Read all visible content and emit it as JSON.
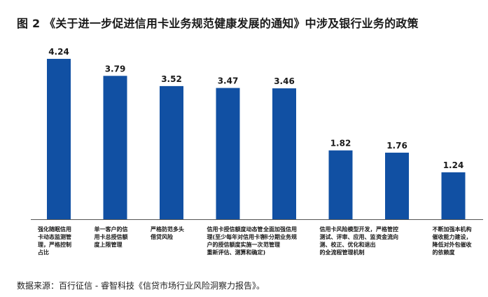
{
  "title": "图 2 《关于进一步促进信用卡业务规范健康发展的通知》中涉及银行业务的政策",
  "source": "数据来源：百行征信 - 睿智科技《信贷市场行业风险洞察力报告》。",
  "colors": {
    "bar": "#1150a3",
    "axis": "#555555",
    "text": "#1a1a1a"
  },
  "chart_data": {
    "type": "bar",
    "title": "图 2 《关于进一步促进信用卡业务规范健康发展的通知》中涉及银行业务的政策",
    "grid": false,
    "legend": "none",
    "ylim": [
      0,
      4.24
    ],
    "categories": [
      [
        "强化随眠信用",
        "卡动态监测管",
        "理，严格控制",
        "占比"
      ],
      [
        "单一客户的信",
        "用卡总授信额",
        "度上限管理"
      ],
      [
        "严格防范多头",
        "借贷风险"
      ],
      [
        "信用卡授信额度动态管",
        "理(至少每年对信用卡客",
        "户的授信额度实施一次",
        "重新评估、测算和确定)"
      ],
      [
        "全面加强信用",
        "卡分期业务规",
        "范管理"
      ],
      [
        "信用卡风险模型开发，",
        "测试、评审、应用、监",
        "测、校正、优化和退出",
        "的全流程管理机制"
      ],
      [
        "严格管控",
        "资金流向"
      ],
      [
        "不断加强本机构",
        "催收能力建设，",
        "降低对外包催收",
        "的依赖度"
      ]
    ],
    "values": [
      4.24,
      3.79,
      3.52,
      3.47,
      3.46,
      1.82,
      1.76,
      1.24
    ],
    "value_labels": [
      "4.24",
      "3.79",
      "3.52",
      "3.47",
      "3.46",
      "1.82",
      "1.76",
      "1.24"
    ]
  }
}
